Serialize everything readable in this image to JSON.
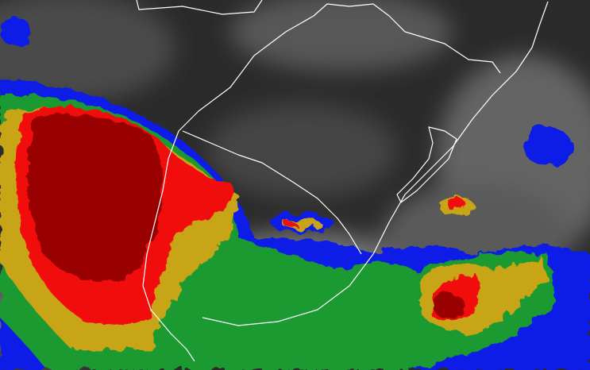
{
  "map": {
    "type": "enhanced infrared satellite image",
    "colors": {
      "background_dark": "#2b2b2b",
      "cloud_gray": "#8a8a8a",
      "blue": "#0a1ee6",
      "green": "#1f9a32",
      "gold": "#c8a514",
      "red": "#f20d0d",
      "dark_red": "#990000",
      "border": "#ffffff"
    }
  }
}
